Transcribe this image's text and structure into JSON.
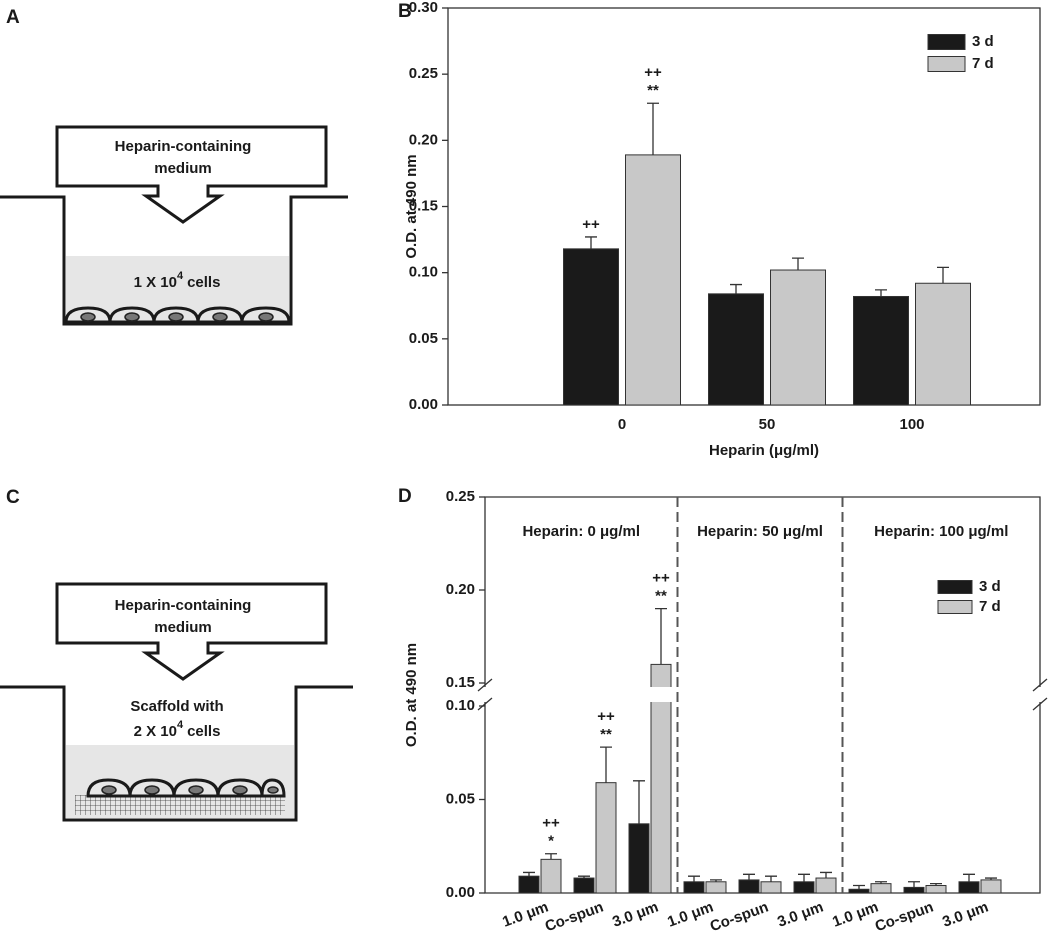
{
  "panel_labels": [
    "A",
    "B",
    "C",
    "D"
  ],
  "diagram_a": {
    "medium": [
      "Heparin-containing",
      "medium"
    ],
    "cells": {
      "base": "1 X 10",
      "exponent": "4",
      "unit": "cells"
    }
  },
  "diagram_c": {
    "medium": [
      "Heparin-containing",
      "medium"
    ],
    "scaffold": "Scaffold with",
    "cells": {
      "base": "2 X 10",
      "exponent": "4",
      "unit": "cells"
    }
  },
  "chart_data": [
    {
      "type": "bar",
      "x_label": "Heparin (μg/ml)",
      "y_label": "O.D. at 490 nm",
      "categories": [
        "0",
        "50",
        "100"
      ],
      "series": [
        {
          "name": "3 d",
          "color": "#1a1a1a",
          "values": [
            0.118,
            0.084,
            0.082
          ],
          "errors": [
            0.009,
            0.007,
            0.005
          ],
          "annotations": [
            [
              "++"
            ],
            [],
            []
          ]
        },
        {
          "name": "7 d",
          "color": "#c8c8c8",
          "values": [
            0.189,
            0.102,
            0.092
          ],
          "errors": [
            0.039,
            0.009,
            0.012
          ],
          "annotations": [
            [
              "++",
              "**"
            ],
            [],
            []
          ]
        }
      ],
      "ylim": [
        0,
        0.3
      ],
      "yticks": [
        {
          "value": 0,
          "label": "0.00"
        },
        {
          "value": 0.05,
          "label": "0.05"
        },
        {
          "value": 0.1,
          "label": "0.10"
        },
        {
          "value": 0.15,
          "label": "0.15"
        },
        {
          "value": 0.2,
          "label": "0.20"
        },
        {
          "value": 0.25,
          "label": "0.25"
        },
        {
          "value": 0.3,
          "label": "0.30"
        }
      ],
      "legend": "top-right"
    },
    {
      "type": "bar",
      "y_label": "O.D. at 490 nm",
      "groups": [
        "Heparin: 0 μg/ml",
        "Heparin: 50 μg/ml",
        "Heparin: 100 μg/ml"
      ],
      "categories": [
        "1.0 μm",
        "Co-spun",
        "3.0 μm",
        "1.0 μm",
        "Co-spun",
        "3.0 μm",
        "1.0 μm",
        "Co-spun",
        "3.0 μm"
      ],
      "series": [
        {
          "name": "3 d",
          "color": "#1a1a1a",
          "values": [
            0.009,
            0.008,
            0.037,
            0.006,
            0.007,
            0.006,
            0.002,
            0.003,
            0.006
          ],
          "errors": [
            0.002,
            0.001,
            0.023,
            0.003,
            0.003,
            0.004,
            0.002,
            0.003,
            0.004
          ],
          "annotations": [
            [],
            [],
            [],
            [],
            [],
            [],
            [],
            [],
            []
          ]
        },
        {
          "name": "7 d",
          "color": "#c8c8c8",
          "values": [
            0.018,
            0.059,
            0.16,
            0.006,
            0.006,
            0.008,
            0.005,
            0.004,
            0.007
          ],
          "errors": [
            0.003,
            0.019,
            0.03,
            0.001,
            0.003,
            0.003,
            0.001,
            0.001,
            0.001
          ],
          "annotations": [
            [
              "++",
              "*"
            ],
            [
              "++",
              "**"
            ],
            [
              "++",
              "**"
            ],
            [],
            [],
            [],
            [],
            [],
            []
          ]
        }
      ],
      "ylim": [
        0,
        0.25
      ],
      "ybreak": [
        0.1,
        0.15
      ],
      "yticks": [
        {
          "value": 0,
          "label": "0.00"
        },
        {
          "value": 0.05,
          "label": "0.05"
        },
        {
          "value": 0.1,
          "label": "0.10"
        },
        {
          "value": 0.15,
          "label": "0.15"
        },
        {
          "value": 0.2,
          "label": "0.20"
        },
        {
          "value": 0.25,
          "label": "0.25"
        }
      ],
      "legend": "top-right"
    }
  ]
}
